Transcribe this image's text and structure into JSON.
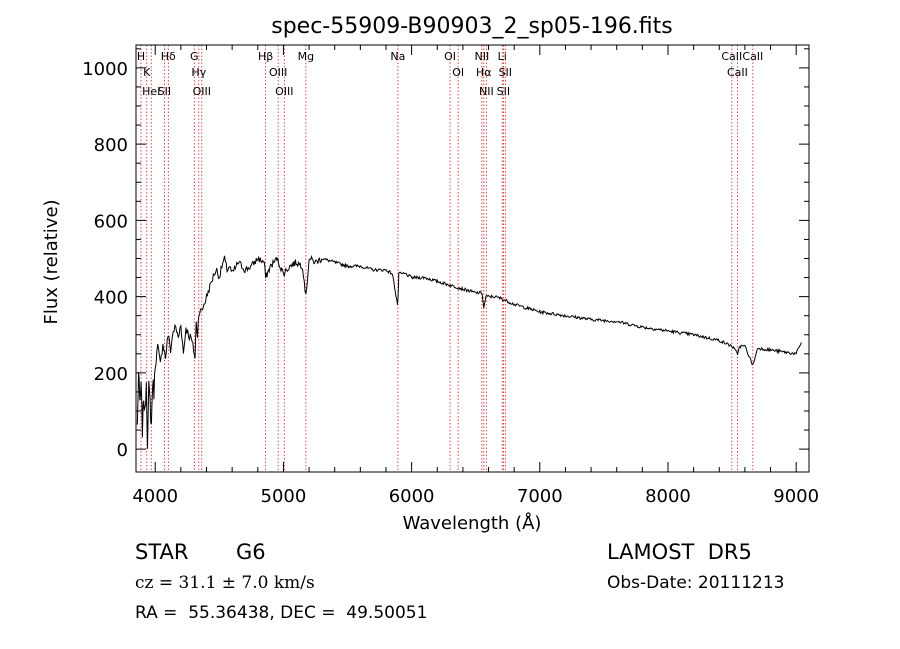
{
  "chart_data": {
    "type": "line",
    "title": "spec-55909-B90903_2_sp05-196.fits",
    "xlabel": "Wavelength (Å)",
    "ylabel": "Flux (relative)",
    "xlim": [
      3850,
      9100
    ],
    "ylim": [
      -60,
      1060
    ],
    "x_ticks": [
      4000,
      5000,
      6000,
      7000,
      8000,
      9000
    ],
    "y_ticks": [
      0,
      200,
      400,
      600,
      800,
      1000
    ],
    "grid": false,
    "series": [
      {
        "line_color": "#000000",
        "x": [
          3860,
          3870,
          3880,
          3890,
          3900,
          3910,
          3920,
          3930,
          3940,
          3950,
          3960,
          3970,
          3980,
          3990,
          4000,
          4020,
          4040,
          4060,
          4080,
          4100,
          4120,
          4140,
          4160,
          4180,
          4200,
          4220,
          4240,
          4260,
          4280,
          4300,
          4310,
          4320,
          4330,
          4340,
          4360,
          4380,
          4400,
          4420,
          4440,
          4460,
          4480,
          4500,
          4520,
          4540,
          4560,
          4580,
          4600,
          4650,
          4700,
          4750,
          4800,
          4850,
          4861,
          4900,
          4950,
          5000,
          5050,
          5100,
          5150,
          5175,
          5200,
          5250,
          5300,
          5400,
          5500,
          5600,
          5700,
          5800,
          5850,
          5890,
          5895,
          5900,
          5950,
          6000,
          6100,
          6200,
          6300,
          6400,
          6500,
          6550,
          6563,
          6580,
          6600,
          6650,
          6700,
          6800,
          6900,
          7000,
          7200,
          7400,
          7600,
          7800,
          8000,
          8200,
          8400,
          8500,
          8542,
          8560,
          8600,
          8662,
          8700,
          8800,
          8900,
          9000,
          9040
        ],
        "y": [
          60,
          200,
          120,
          160,
          50,
          140,
          90,
          180,
          20,
          160,
          120,
          60,
          180,
          150,
          220,
          270,
          220,
          280,
          240,
          300,
          260,
          310,
          320,
          290,
          330,
          250,
          320,
          300,
          290,
          260,
          240,
          330,
          300,
          360,
          360,
          380,
          400,
          420,
          440,
          460,
          470,
          450,
          480,
          500,
          470,
          480,
          460,
          490,
          470,
          480,
          500,
          490,
          450,
          480,
          500,
          460,
          480,
          490,
          480,
          400,
          500,
          490,
          500,
          490,
          480,
          480,
          470,
          470,
          460,
          380,
          400,
          460,
          460,
          450,
          450,
          440,
          430,
          420,
          410,
          410,
          370,
          400,
          400,
          400,
          395,
          380,
          370,
          360,
          350,
          340,
          335,
          320,
          310,
          300,
          285,
          270,
          250,
          270,
          270,
          220,
          265,
          260,
          255,
          250,
          280
        ]
      }
    ],
    "lines": [
      {
        "x": 3889,
        "labels": [
          "H"
        ]
      },
      {
        "x": 3934,
        "labels": [
          "K"
        ]
      },
      {
        "x": 3969,
        "labels": [
          "HeI"
        ]
      },
      {
        "x": 4102,
        "labels": [
          "Hδ"
        ]
      },
      {
        "x": 4072,
        "labels": [
          "SII"
        ]
      },
      {
        "x": 4305,
        "labels": [
          "G"
        ]
      },
      {
        "x": 4340,
        "labels": [
          "Hγ"
        ]
      },
      {
        "x": 4363,
        "labels": [
          "OIII"
        ]
      },
      {
        "x": 4861,
        "labels": [
          "Hβ"
        ]
      },
      {
        "x": 4959,
        "labels": [
          "OIII"
        ]
      },
      {
        "x": 5007,
        "labels": [
          "OIII"
        ]
      },
      {
        "x": 5175,
        "labels": [
          "Mg"
        ]
      },
      {
        "x": 5893,
        "labels": [
          "Na"
        ]
      },
      {
        "x": 6300,
        "labels": [
          "OI"
        ]
      },
      {
        "x": 6363,
        "labels": [
          "OI"
        ]
      },
      {
        "x": 6548,
        "labels": [
          "NII"
        ]
      },
      {
        "x": 6563,
        "labels": [
          "Hα"
        ]
      },
      {
        "x": 6583,
        "labels": [
          "NII"
        ]
      },
      {
        "x": 6707,
        "labels": [
          "Li"
        ]
      },
      {
        "x": 6716,
        "labels": [
          "SII"
        ]
      },
      {
        "x": 6731,
        "labels": [
          "SII"
        ]
      },
      {
        "x": 8498,
        "labels": [
          "CaII"
        ]
      },
      {
        "x": 8542,
        "labels": [
          "CaII"
        ]
      },
      {
        "x": 8662,
        "labels": [
          "CaII"
        ]
      }
    ]
  },
  "info": {
    "object_class": "STAR",
    "subclass": "G6",
    "survey": "LAMOST  DR5",
    "redshift": "cz = 31.1 ± 7.0 km/s",
    "obs_date": "Obs-Date: 20111213",
    "coords": "RA =  55.36438, DEC =  49.50051"
  },
  "colors": {
    "spectrum": "#000000",
    "line_markers": "#cc2222",
    "axes": "#000000",
    "background": "#ffffff"
  }
}
